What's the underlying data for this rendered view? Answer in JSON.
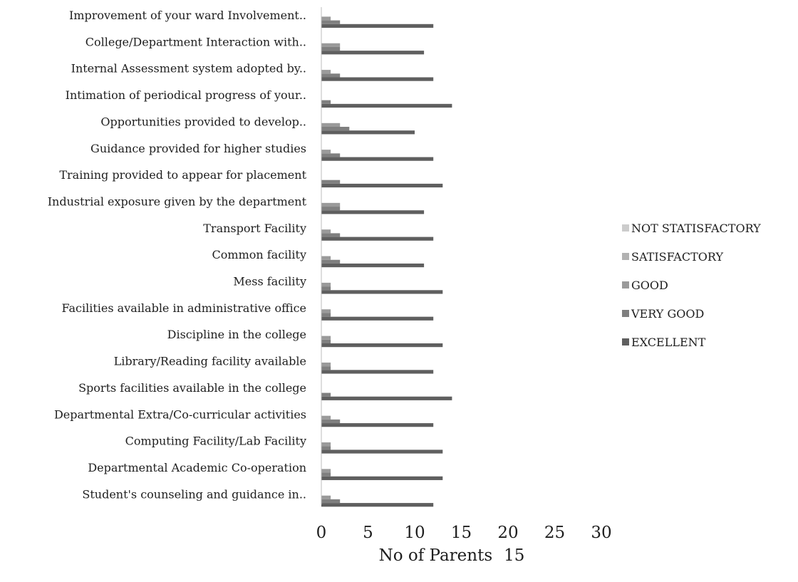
{
  "chart_data": {
    "type": "bar",
    "orientation": "horizontal",
    "xlabel": "No of Parents",
    "xlabel_suffix": "15",
    "xlim": [
      0,
      30
    ],
    "xticks": [
      "0",
      "5",
      "10",
      "15",
      "20",
      "25",
      "30"
    ],
    "grid": false,
    "legend_position": "right",
    "categories": [
      "Student's counseling and guidance in..",
      "Departmental Academic Co-operation",
      "Computing Facility/Lab Facility",
      "Departmental Extra/Co-curricular activities",
      "Sports facilities available in the college",
      "Library/Reading facility available",
      "Discipline in the college",
      "Facilities available in administrative office",
      "Mess facility",
      "Common facility",
      "Transport Facility",
      "Industrial exposure given by the department",
      "Training provided to appear for placement",
      "Guidance provided for higher studies",
      "Opportunities provided to develop..",
      "Intimation of periodical progress of your..",
      "Internal Assessment system adopted by..",
      "College/Department Interaction with..",
      "Improvement of your ward Involvement.."
    ],
    "series": [
      {
        "name": "EXCELLENT",
        "color": "#5f5f5f",
        "values": [
          12,
          13,
          13,
          12,
          14,
          12,
          13,
          12,
          13,
          11,
          12,
          11,
          13,
          12,
          10,
          14,
          12,
          11,
          12
        ]
      },
      {
        "name": "VERY GOOD",
        "color": "#7f7f7f",
        "values": [
          2,
          1,
          1,
          2,
          1,
          1,
          1,
          1,
          1,
          2,
          2,
          2,
          2,
          2,
          3,
          1,
          2,
          2,
          2
        ]
      },
      {
        "name": "GOOD",
        "color": "#9a9a9a",
        "values": [
          1,
          1,
          1,
          1,
          0,
          1,
          1,
          1,
          1,
          1,
          1,
          2,
          0,
          1,
          2,
          0,
          1,
          2,
          1
        ]
      },
      {
        "name": "SATISFACTORY",
        "color": "#b2b2b2",
        "values": [
          0,
          0,
          0,
          0,
          0,
          0,
          0,
          0,
          0,
          0,
          0,
          0,
          0,
          0,
          0,
          0,
          0,
          0,
          0
        ]
      },
      {
        "name": "NOT STATISFACTORY",
        "color": "#cccccc",
        "values": [
          0,
          0,
          0,
          0,
          0,
          0,
          0,
          0,
          0,
          0,
          0,
          0,
          0,
          0,
          0,
          0,
          0,
          0,
          0
        ]
      }
    ]
  }
}
